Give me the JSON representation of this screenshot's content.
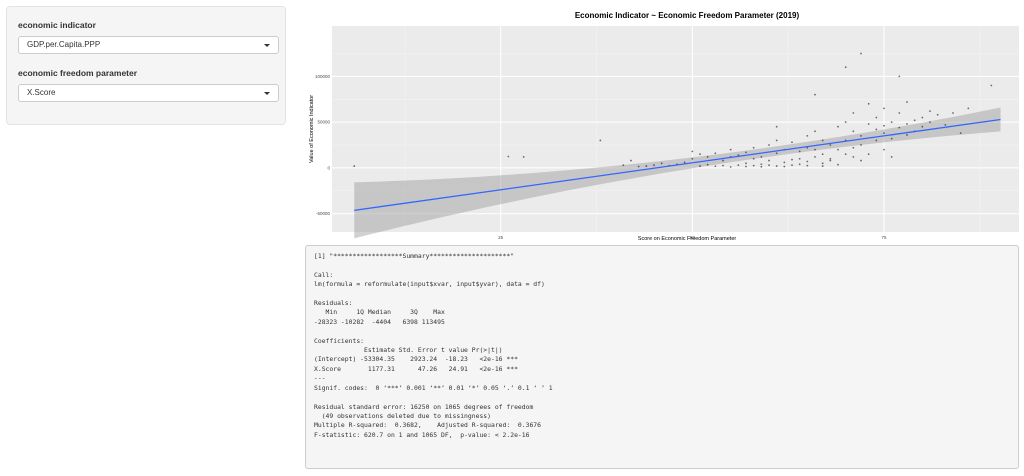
{
  "sidebar": {
    "econ_indicator": {
      "label": "economic indicator",
      "selected": "GDP.per.Capita.PPP"
    },
    "freedom_param": {
      "label": "economic freedom parameter",
      "selected": "X.Score"
    }
  },
  "plot": {
    "title": "Economic Indicator ~ Economic Freedom Parameter (2019)",
    "xlabel": "Score on Economic Freedom Parameter",
    "ylabel": "Value of Economic Indicator"
  },
  "chart_data": {
    "type": "scatter",
    "title": "Economic Indicator ~ Economic Freedom Parameter (2019)",
    "xlabel": "Score on Economic Freedom Parameter",
    "ylabel": "Value of Economic Indicator",
    "xlim": [
      3,
      93
    ],
    "ylim": [
      -70000,
      155000
    ],
    "xticks": [
      25,
      50,
      75
    ],
    "yticks": [
      -50000,
      0,
      50000,
      100000
    ],
    "ytick_labels": [
      "-50000",
      "0",
      "50000",
      "100000"
    ],
    "grid": true,
    "fit": {
      "type": "lm",
      "intercept": -53304.35,
      "slope": 1177.31,
      "x_range": [
        5.9,
        90.2
      ]
    },
    "points": [
      [
        5.9,
        2000
      ],
      [
        26,
        12500
      ],
      [
        28,
        12000
      ],
      [
        38,
        30000
      ],
      [
        41,
        3000
      ],
      [
        42,
        8000
      ],
      [
        43,
        1500
      ],
      [
        44,
        2000
      ],
      [
        45,
        3000
      ],
      [
        46,
        5000
      ],
      [
        47,
        2500
      ],
      [
        48,
        4000
      ],
      [
        49,
        6000
      ],
      [
        50,
        10000
      ],
      [
        50,
        18000
      ],
      [
        51,
        2000
      ],
      [
        51,
        15000
      ],
      [
        52,
        3500
      ],
      [
        52,
        12000
      ],
      [
        53,
        1800
      ],
      [
        53,
        16000
      ],
      [
        54,
        2500
      ],
      [
        54,
        8000
      ],
      [
        55,
        1000
      ],
      [
        55,
        12000
      ],
      [
        55,
        20000
      ],
      [
        56,
        3000
      ],
      [
        56,
        14000
      ],
      [
        57,
        5000
      ],
      [
        57,
        17000
      ],
      [
        57,
        1500
      ],
      [
        58,
        2500
      ],
      [
        58,
        10000
      ],
      [
        58,
        22000
      ],
      [
        59,
        4000
      ],
      [
        59,
        12000
      ],
      [
        59,
        1200
      ],
      [
        60,
        3000
      ],
      [
        60,
        8000
      ],
      [
        60,
        25000
      ],
      [
        61,
        16000
      ],
      [
        61,
        2000
      ],
      [
        61,
        30000
      ],
      [
        61,
        45000
      ],
      [
        62,
        6000
      ],
      [
        62,
        20000
      ],
      [
        62,
        1500
      ],
      [
        63,
        9000
      ],
      [
        63,
        28000
      ],
      [
        63,
        3000
      ],
      [
        64,
        4000
      ],
      [
        64,
        18000
      ],
      [
        64,
        10000
      ],
      [
        65,
        7000
      ],
      [
        65,
        22000
      ],
      [
        65,
        35000
      ],
      [
        65,
        2500
      ],
      [
        66,
        12000
      ],
      [
        66,
        40000
      ],
      [
        66,
        20000
      ],
      [
        66,
        80000
      ],
      [
        67,
        15000
      ],
      [
        67,
        5000
      ],
      [
        67,
        30000
      ],
      [
        67,
        2000
      ],
      [
        68,
        25000
      ],
      [
        68,
        8000
      ],
      [
        68,
        10000
      ],
      [
        69,
        20000
      ],
      [
        69,
        45000
      ],
      [
        69,
        3500
      ],
      [
        70,
        30000
      ],
      [
        70,
        15000
      ],
      [
        70,
        50000
      ],
      [
        70,
        110000
      ],
      [
        71,
        40000
      ],
      [
        71,
        22000
      ],
      [
        71,
        12000
      ],
      [
        71,
        60000
      ],
      [
        72,
        35000
      ],
      [
        72,
        25000
      ],
      [
        72,
        8000
      ],
      [
        72,
        125000
      ],
      [
        73,
        48000
      ],
      [
        73,
        70000
      ],
      [
        73,
        15000
      ],
      [
        74,
        42000
      ],
      [
        74,
        30000
      ],
      [
        74,
        55000
      ],
      [
        75,
        38000
      ],
      [
        75,
        46000
      ],
      [
        75,
        20000
      ],
      [
        75,
        65000
      ],
      [
        76,
        50000
      ],
      [
        76,
        32000
      ],
      [
        76,
        12000
      ],
      [
        77,
        44000
      ],
      [
        77,
        60000
      ],
      [
        77,
        100000
      ],
      [
        78,
        48000
      ],
      [
        78,
        36000
      ],
      [
        78,
        72000
      ],
      [
        79,
        52000
      ],
      [
        79,
        40000
      ],
      [
        80,
        55000
      ],
      [
        80,
        45000
      ],
      [
        81,
        50000
      ],
      [
        81,
        62000
      ],
      [
        82,
        58000
      ],
      [
        83,
        47000
      ],
      [
        84,
        60000
      ],
      [
        85,
        38000
      ],
      [
        86,
        65000
      ],
      [
        89,
        90000
      ]
    ]
  },
  "summary": {
    "text": "[1] \"******************Summary*********************\"\n\nCall:\nlm(formula = reformulate(input$xvar, input$yvar), data = df)\n\nResiduals:\n   Min     1Q Median     3Q    Max \n-28323 -10282  -4404   6398 113495 \n\nCoefficients:\n             Estimate Std. Error t value Pr(>|t|)    \n(Intercept) -53304.35    2923.24  -18.23   <2e-16 ***\nX.Score       1177.31      47.26   24.91   <2e-16 ***\n---\nSignif. codes:  0 ‘***’ 0.001 ‘**’ 0.01 ‘*’ 0.05 ‘.’ 0.1 ‘ ’ 1\n\nResidual standard error: 16250 on 1065 degrees of freedom\n  (49 observations deleted due to missingness)\nMultiple R-squared:  0.3682,\tAdjusted R-squared:  0.3676 \nF-statistic: 620.7 on 1 and 1065 DF,  p-value: < 2.2e-16"
  }
}
